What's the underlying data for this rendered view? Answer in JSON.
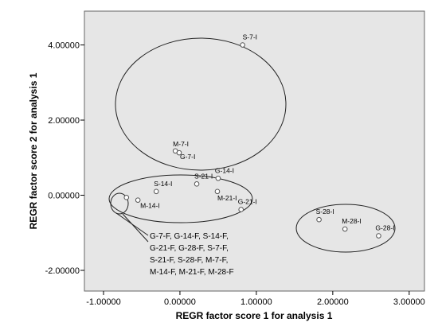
{
  "chart_data": {
    "type": "scatter",
    "xlabel": "REGR factor score 1 for analysis 1",
    "ylabel": "REGR factor score 2 for analysis 1",
    "xlim": [
      -1.25,
      3.2
    ],
    "ylim": [
      -2.55,
      4.9
    ],
    "xticks": [
      {
        "value": -1.0,
        "label": "-1.00000"
      },
      {
        "value": 0.0,
        "label": "0.00000"
      },
      {
        "value": 1.0,
        "label": "1.00000"
      },
      {
        "value": 2.0,
        "label": "2.00000"
      },
      {
        "value": 3.0,
        "label": "3.00000"
      }
    ],
    "yticks": [
      {
        "value": 4.0,
        "label": "4.00000"
      },
      {
        "value": 2.0,
        "label": "2.00000"
      },
      {
        "value": 0.0,
        "label": "0.00000"
      },
      {
        "value": -2.0,
        "label": "-2.00000"
      }
    ],
    "grid": false,
    "points": [
      {
        "x": 0.82,
        "y": 4.0,
        "label": "S-7-I"
      },
      {
        "x": -0.06,
        "y": 1.18,
        "label": "M-7-I"
      },
      {
        "x": -0.01,
        "y": 1.13,
        "label": "G-7-I"
      },
      {
        "x": 0.5,
        "y": 0.45,
        "label": "G-14-I"
      },
      {
        "x": 0.22,
        "y": 0.3,
        "label": "S-21-I"
      },
      {
        "x": -0.31,
        "y": 0.1,
        "label": "S-14-I"
      },
      {
        "x": 0.49,
        "y": 0.1,
        "label": "M-21-I"
      },
      {
        "x": 0.8,
        "y": -0.38,
        "label": "G-21-I"
      },
      {
        "x": -0.55,
        "y": -0.13,
        "label": "M-14-I"
      },
      {
        "x": -0.7,
        "y": -0.06,
        "label": ""
      },
      {
        "x": 1.82,
        "y": -0.65,
        "label": "S-28-I"
      },
      {
        "x": 2.16,
        "y": -0.9,
        "label": "M-28-I"
      },
      {
        "x": 2.6,
        "y": -1.08,
        "label": "G-28-I"
      }
    ],
    "annotation_lines": [
      "G-7-F,  G-14-F, S-14-F,",
      "G-21-F, G-28-F, S-7-F,",
      "S-21-F, S-28-F, M-7-F,",
      "M-14-F, M-21-F, M-28-F"
    ],
    "colors": {
      "plot_background": "#e6e6e6",
      "marker_edge": "#555555",
      "ellipse": "#222222"
    }
  }
}
